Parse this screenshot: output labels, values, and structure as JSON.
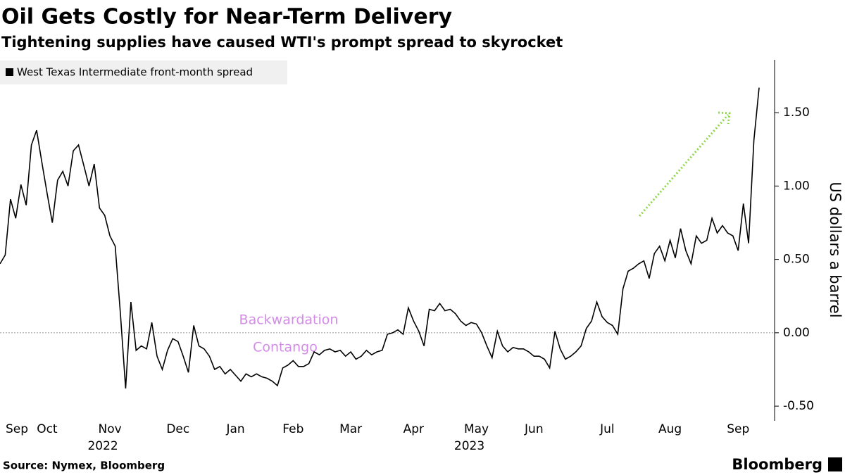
{
  "chart_data": {
    "type": "line",
    "title": "Oil Gets Costly for Near-Term Delivery",
    "subtitle": "Tightening supplies have caused WTI's prompt spread to skyrocket",
    "y_axis_label": "US dollars a barrel",
    "source": "Source: Nymex, Bloomberg",
    "brand": "Bloomberg",
    "annotations": [
      "Backwardation",
      "Contango"
    ],
    "year_labels": [
      "2022",
      "2023"
    ],
    "legend": "top-left",
    "series": [
      {
        "name": "West Texas Intermediate front-month spread",
        "color": "#000000",
        "values": [
          0.47,
          0.53,
          0.91,
          0.78,
          1.01,
          0.87,
          1.28,
          1.38,
          1.16,
          0.95,
          0.75,
          1.04,
          1.1,
          1.0,
          1.24,
          1.28,
          1.14,
          1.0,
          1.15,
          0.85,
          0.8,
          0.66,
          0.59,
          0.13,
          -0.38,
          0.21,
          -0.12,
          -0.09,
          -0.11,
          0.07,
          -0.16,
          -0.25,
          -0.12,
          -0.04,
          -0.06,
          -0.16,
          -0.27,
          0.05,
          -0.09,
          -0.11,
          -0.16,
          -0.25,
          -0.23,
          -0.28,
          -0.25,
          -0.29,
          -0.33,
          -0.28,
          -0.3,
          -0.28,
          -0.3,
          -0.31,
          -0.33,
          -0.36,
          -0.24,
          -0.22,
          -0.19,
          -0.23,
          -0.23,
          -0.21,
          -0.13,
          -0.15,
          -0.12,
          -0.11,
          -0.13,
          -0.12,
          -0.16,
          -0.13,
          -0.18,
          -0.16,
          -0.12,
          -0.15,
          -0.13,
          -0.12,
          -0.01,
          0.0,
          0.02,
          -0.01,
          0.17,
          0.08,
          0.01,
          -0.09,
          0.16,
          0.15,
          0.2,
          0.15,
          0.16,
          0.13,
          0.08,
          0.05,
          0.07,
          0.06,
          0.0,
          -0.09,
          -0.17,
          0.01,
          -0.09,
          -0.13,
          -0.1,
          -0.11,
          -0.11,
          -0.13,
          -0.16,
          -0.16,
          -0.18,
          -0.24,
          0.01,
          -0.11,
          -0.18,
          -0.16,
          -0.13,
          -0.09,
          0.03,
          0.08,
          0.21,
          0.11,
          0.07,
          0.05,
          -0.01,
          0.3,
          0.42,
          0.44,
          0.47,
          0.49,
          0.37,
          0.54,
          0.59,
          0.49,
          0.63,
          0.51,
          0.71,
          0.56,
          0.47,
          0.66,
          0.61,
          0.63,
          0.78,
          0.68,
          0.73,
          0.68,
          0.66,
          0.56,
          0.88,
          0.61,
          1.31,
          1.67
        ]
      }
    ],
    "xlim": [
      0,
      145
    ],
    "xticks": [
      {
        "value": 3,
        "label": "Sep"
      },
      {
        "value": 9,
        "label": "Oct"
      },
      {
        "value": 21,
        "label": "Nov"
      },
      {
        "value": 34,
        "label": "Dec"
      },
      {
        "value": 45,
        "label": "Jan"
      },
      {
        "value": 56,
        "label": "Feb"
      },
      {
        "value": 67,
        "label": "Mar"
      },
      {
        "value": 79,
        "label": "Apr"
      },
      {
        "value": 91,
        "label": "May"
      },
      {
        "value": 102,
        "label": "Jun"
      },
      {
        "value": 116,
        "label": "Jul"
      },
      {
        "value": 128,
        "label": "Aug"
      },
      {
        "value": 141,
        "label": "Sep"
      }
    ],
    "ylim": [
      -0.6,
      1.86
    ],
    "yticks": [
      {
        "value": 1.5,
        "label": "1.50"
      },
      {
        "value": 1.0,
        "label": "1.00"
      },
      {
        "value": 0.5,
        "label": "0.50"
      },
      {
        "value": 0.0,
        "label": "0.00"
      },
      {
        "value": -0.5,
        "label": "-0.50"
      }
    ]
  }
}
